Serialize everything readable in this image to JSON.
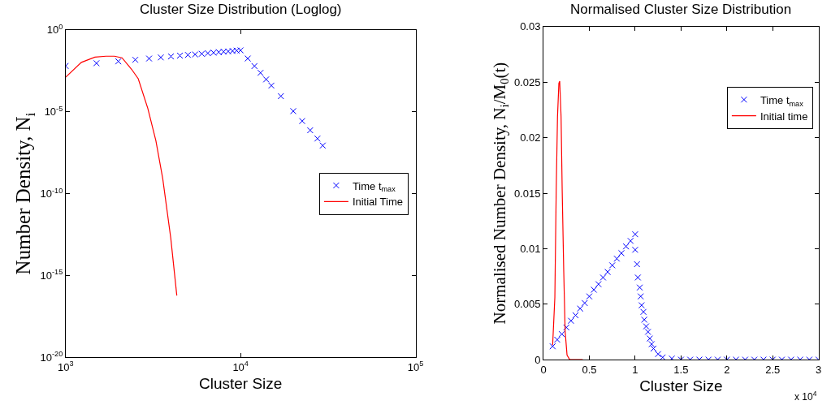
{
  "chart_data": [
    {
      "type": "line",
      "title": "Cluster Size Distribution (Loglog)",
      "xlabel": "Cluster Size",
      "ylabel": "Number Density, N$_{i}$",
      "log": "xy",
      "grid": false,
      "legend": "right",
      "xlim": [
        1000,
        100000
      ],
      "xticks": [
        {
          "value": 1000,
          "label": "10$^{3}$"
        },
        {
          "value": 10000,
          "label": "10$^{4}$"
        },
        {
          "value": 100000,
          "label": "10$^{5}$"
        }
      ],
      "ylim": [
        1e-20,
        1
      ],
      "yticks": [
        {
          "value": 1e-20,
          "label": "10$^{-20}$"
        },
        {
          "value": 1e-15,
          "label": "10$^{-15}$"
        },
        {
          "value": 1e-10,
          "label": "10$^{-10}$"
        },
        {
          "value": 1e-05,
          "label": "10$^{-5}$"
        },
        {
          "value": 1,
          "label": "10$^{0}$"
        }
      ],
      "series": [
        {
          "name": "Time t$_{max}$",
          "type": "scatter",
          "marker": "cross",
          "color": "#0000ff",
          "x": [
            1000,
            1500,
            2000,
            2500,
            3000,
            3500,
            4000,
            4500,
            5000,
            5500,
            6000,
            6500,
            7000,
            7500,
            8000,
            8500,
            9000,
            9500,
            10000,
            11000,
            12000,
            13000,
            14000,
            15000,
            17000,
            20000,
            22500,
            25000,
            27500,
            29500
          ],
          "values": [
            0.0063,
            0.0093,
            0.012,
            0.015,
            0.018,
            0.021,
            0.024,
            0.027,
            0.03,
            0.032,
            0.035,
            0.038,
            0.041,
            0.044,
            0.047,
            0.049,
            0.052,
            0.055,
            0.057,
            0.018,
            0.0062,
            0.0024,
            0.00095,
            0.0004,
            9e-05,
            1.1e-05,
            2.7e-06,
            7.4e-07,
            2.3e-07,
            8.7e-08
          ]
        },
        {
          "name": "Initial Time",
          "type": "line",
          "marker": "none",
          "color": "#ff0000",
          "x": [
            1000,
            1230,
            1470,
            1700,
            1900,
            2100,
            2380,
            2600,
            2950,
            3280,
            3590,
            3990,
            4320
          ],
          "values": [
            0.0013,
            0.0105,
            0.022,
            0.025,
            0.025,
            0.02,
            0.004,
            0.00105,
            1.6e-05,
            1.7e-07,
            8.1e-10,
            1.9e-13,
            5.9e-17
          ]
        }
      ]
    },
    {
      "type": "line",
      "title": "Normalised Cluster Size Distribution",
      "xlabel": "Cluster Size",
      "ylabel": "Normalised Number Density, N$_{i}$/M$_{0}$(t)",
      "grid": false,
      "legend": "top right",
      "annotations": [
        "x 10$^{4}$"
      ],
      "xlim": [
        0,
        3
      ],
      "xticks": [
        0,
        0.5,
        1,
        1.5,
        2,
        2.5,
        3
      ],
      "ylim": [
        0,
        0.03
      ],
      "yticks": [
        0,
        0.005,
        0.01,
        0.015,
        0.02,
        0.025,
        0.03
      ],
      "series": [
        {
          "name": "Time t$_{max}$",
          "type": "scatter",
          "marker": "cross",
          "color": "#0000ff",
          "x": [
            0.1,
            0.15,
            0.2,
            0.25,
            0.3,
            0.35,
            0.4,
            0.45,
            0.5,
            0.55,
            0.6,
            0.65,
            0.7,
            0.75,
            0.8,
            0.85,
            0.9,
            0.95,
            1,
            1,
            1.02,
            1.03,
            1.05,
            1.06,
            1.07,
            1.09,
            1.1,
            1.12,
            1.14,
            1.16,
            1.18,
            1.2,
            1.25,
            1.3,
            1.4,
            1.5,
            1.6,
            1.7,
            1.8,
            1.9,
            2,
            2.1,
            2.2,
            2.3,
            2.4,
            2.5,
            2.6,
            2.7,
            2.8,
            2.9,
            3
          ],
          "values": [
            0.0012,
            0.0018,
            0.0023,
            0.0029,
            0.0035,
            0.004,
            0.0046,
            0.0051,
            0.0057,
            0.0063,
            0.0068,
            0.0074,
            0.0079,
            0.0085,
            0.0091,
            0.0096,
            0.0102,
            0.0107,
            0.0113,
            0.0099,
            0.0086,
            0.0074,
            0.0065,
            0.0057,
            0.0049,
            0.0043,
            0.0036,
            0.003,
            0.0025,
            0.0019,
            0.0014,
            0.001,
            0.0005,
            0.0002,
            0.0001,
            0,
            0,
            0,
            0,
            0,
            0,
            0,
            0,
            0,
            0,
            0,
            0,
            0,
            0,
            0,
            0
          ]
        },
        {
          "name": "Initial time",
          "type": "line",
          "marker": "none",
          "color": "#ff0000",
          "x": [
            0.1,
            0.124,
            0.139,
            0.153,
            0.168,
            0.177,
            0.192,
            0.204,
            0.221,
            0.236,
            0.257,
            0.286,
            0.428
          ],
          "values": [
            0.0013,
            0.0056,
            0.0153,
            0.0219,
            0.0249,
            0.0251,
            0.0219,
            0.0153,
            0.008,
            0.0026,
            0.0004,
            0,
            0
          ]
        }
      ]
    }
  ]
}
